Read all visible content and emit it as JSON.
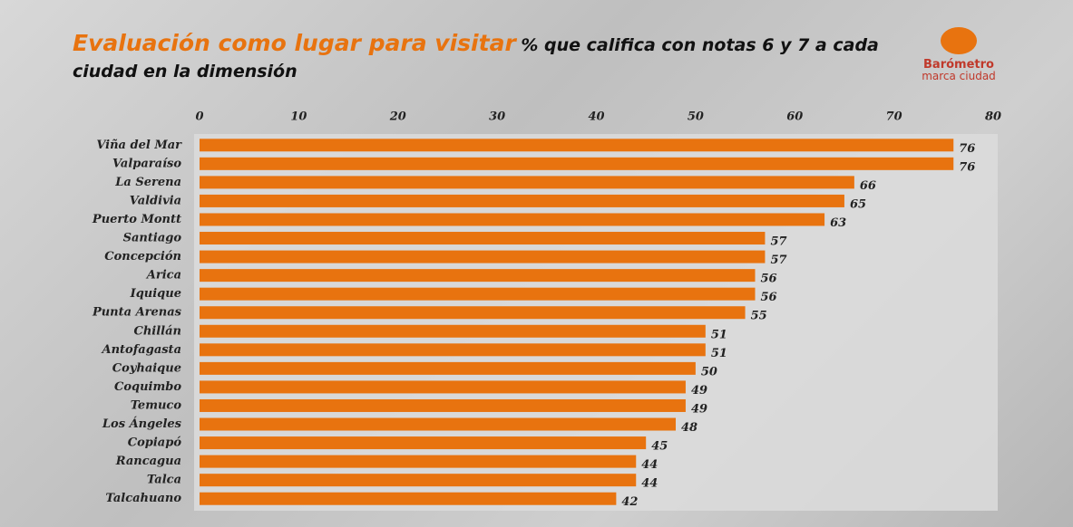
{
  "logo": {
    "name": "Barómetro",
    "tagline": "marca ciudad"
  },
  "chart_data": {
    "type": "bar",
    "orientation": "horizontal",
    "title": "Evaluación como lugar para visitar",
    "subtitle": "% que califica con notas 6 y 7 a cada ciudad en la dimensión",
    "categories": [
      "Viña del Mar",
      "Valparaíso",
      "La Serena",
      "Valdivia",
      "Puerto Montt",
      "Santiago",
      "Concepción",
      "Arica",
      "Iquique",
      "Punta Arenas",
      "Chillán",
      "Antofagasta",
      "Coyhaique",
      "Coquimbo",
      "Temuco",
      "Los Ángeles",
      "Copiapó",
      "Rancagua",
      "Talca",
      "Talcahuano"
    ],
    "values": [
      76,
      76,
      66,
      65,
      63,
      57,
      57,
      56,
      56,
      55,
      51,
      51,
      50,
      49,
      49,
      48,
      45,
      44,
      44,
      42
    ],
    "color": "#e8730f",
    "xlim": [
      0,
      80
    ],
    "xticks": [
      0,
      10,
      20,
      30,
      40,
      50,
      60,
      70,
      80
    ]
  }
}
